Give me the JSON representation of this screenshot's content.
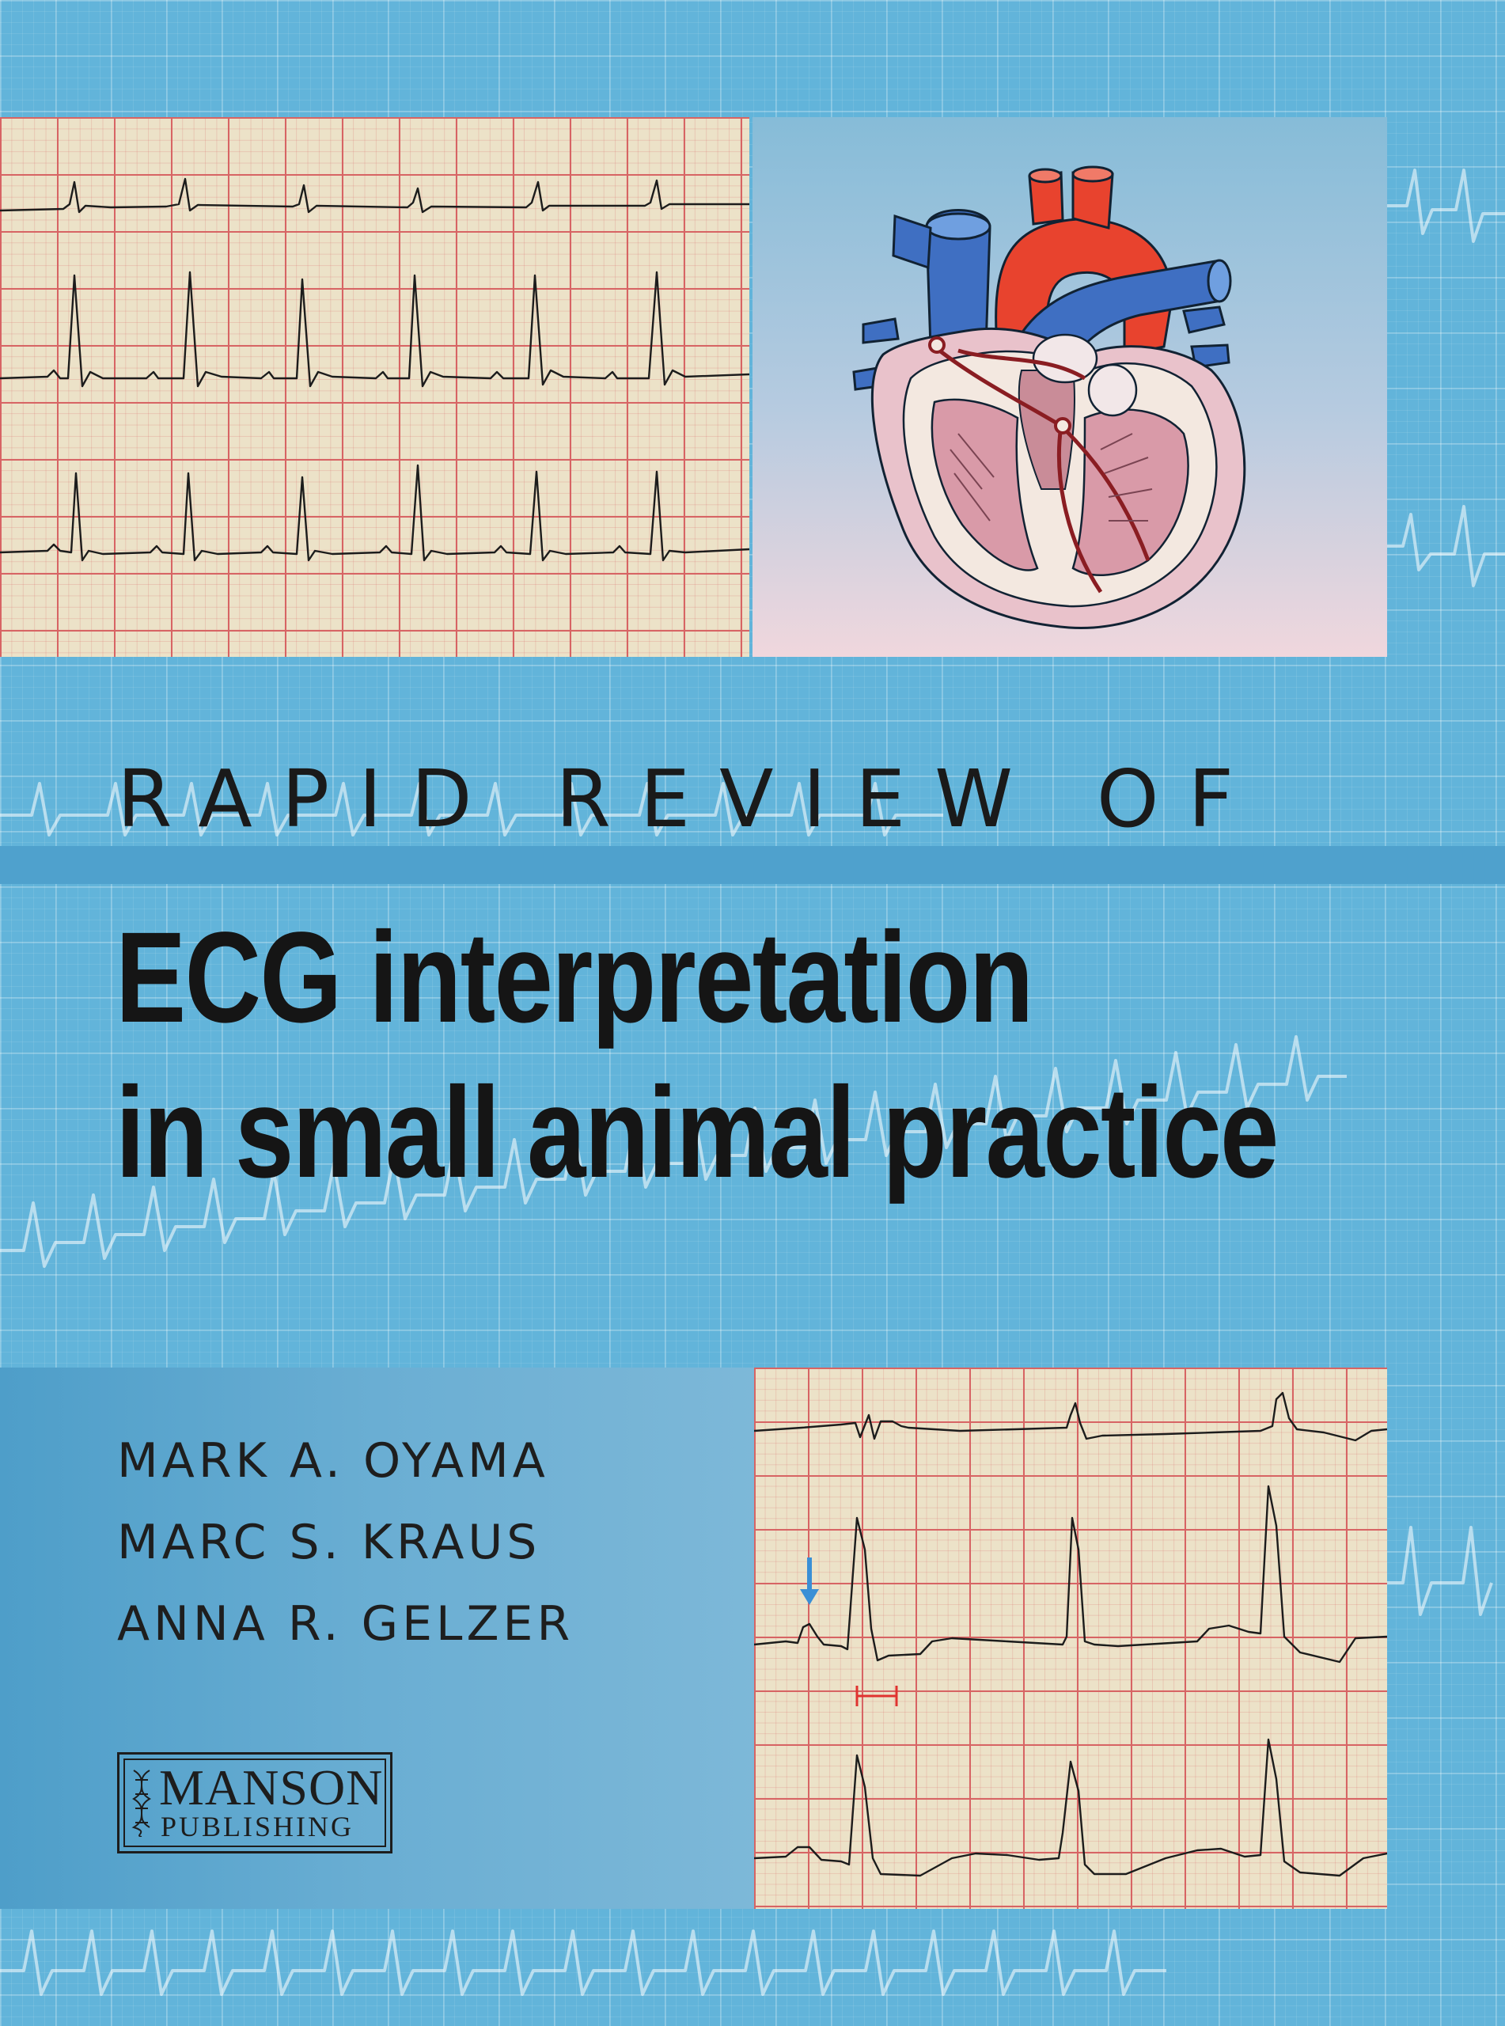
{
  "cover": {
    "title_prefix": "RAPID REVIEW OF",
    "title_line1": "ECG interpretation",
    "title_line2": "in small animal practice",
    "authors": [
      "MARK A. OYAMA",
      "MARC S. KRAUS",
      "ANNA R. GELZER"
    ],
    "publisher": {
      "name": "MANSON",
      "subtitle": "PUBLISHING"
    }
  },
  "colors": {
    "background": "#62b4da",
    "title_band": "#4fa1cd",
    "ecg_paper": "#ece2c8",
    "ecg_grid": "#d76464",
    "text": "#151515",
    "arrow": "#3a8fd6"
  },
  "icons": [
    "heart-anatomy-illustration",
    "publisher-logo-mark",
    "annotation-arrow-icon"
  ]
}
